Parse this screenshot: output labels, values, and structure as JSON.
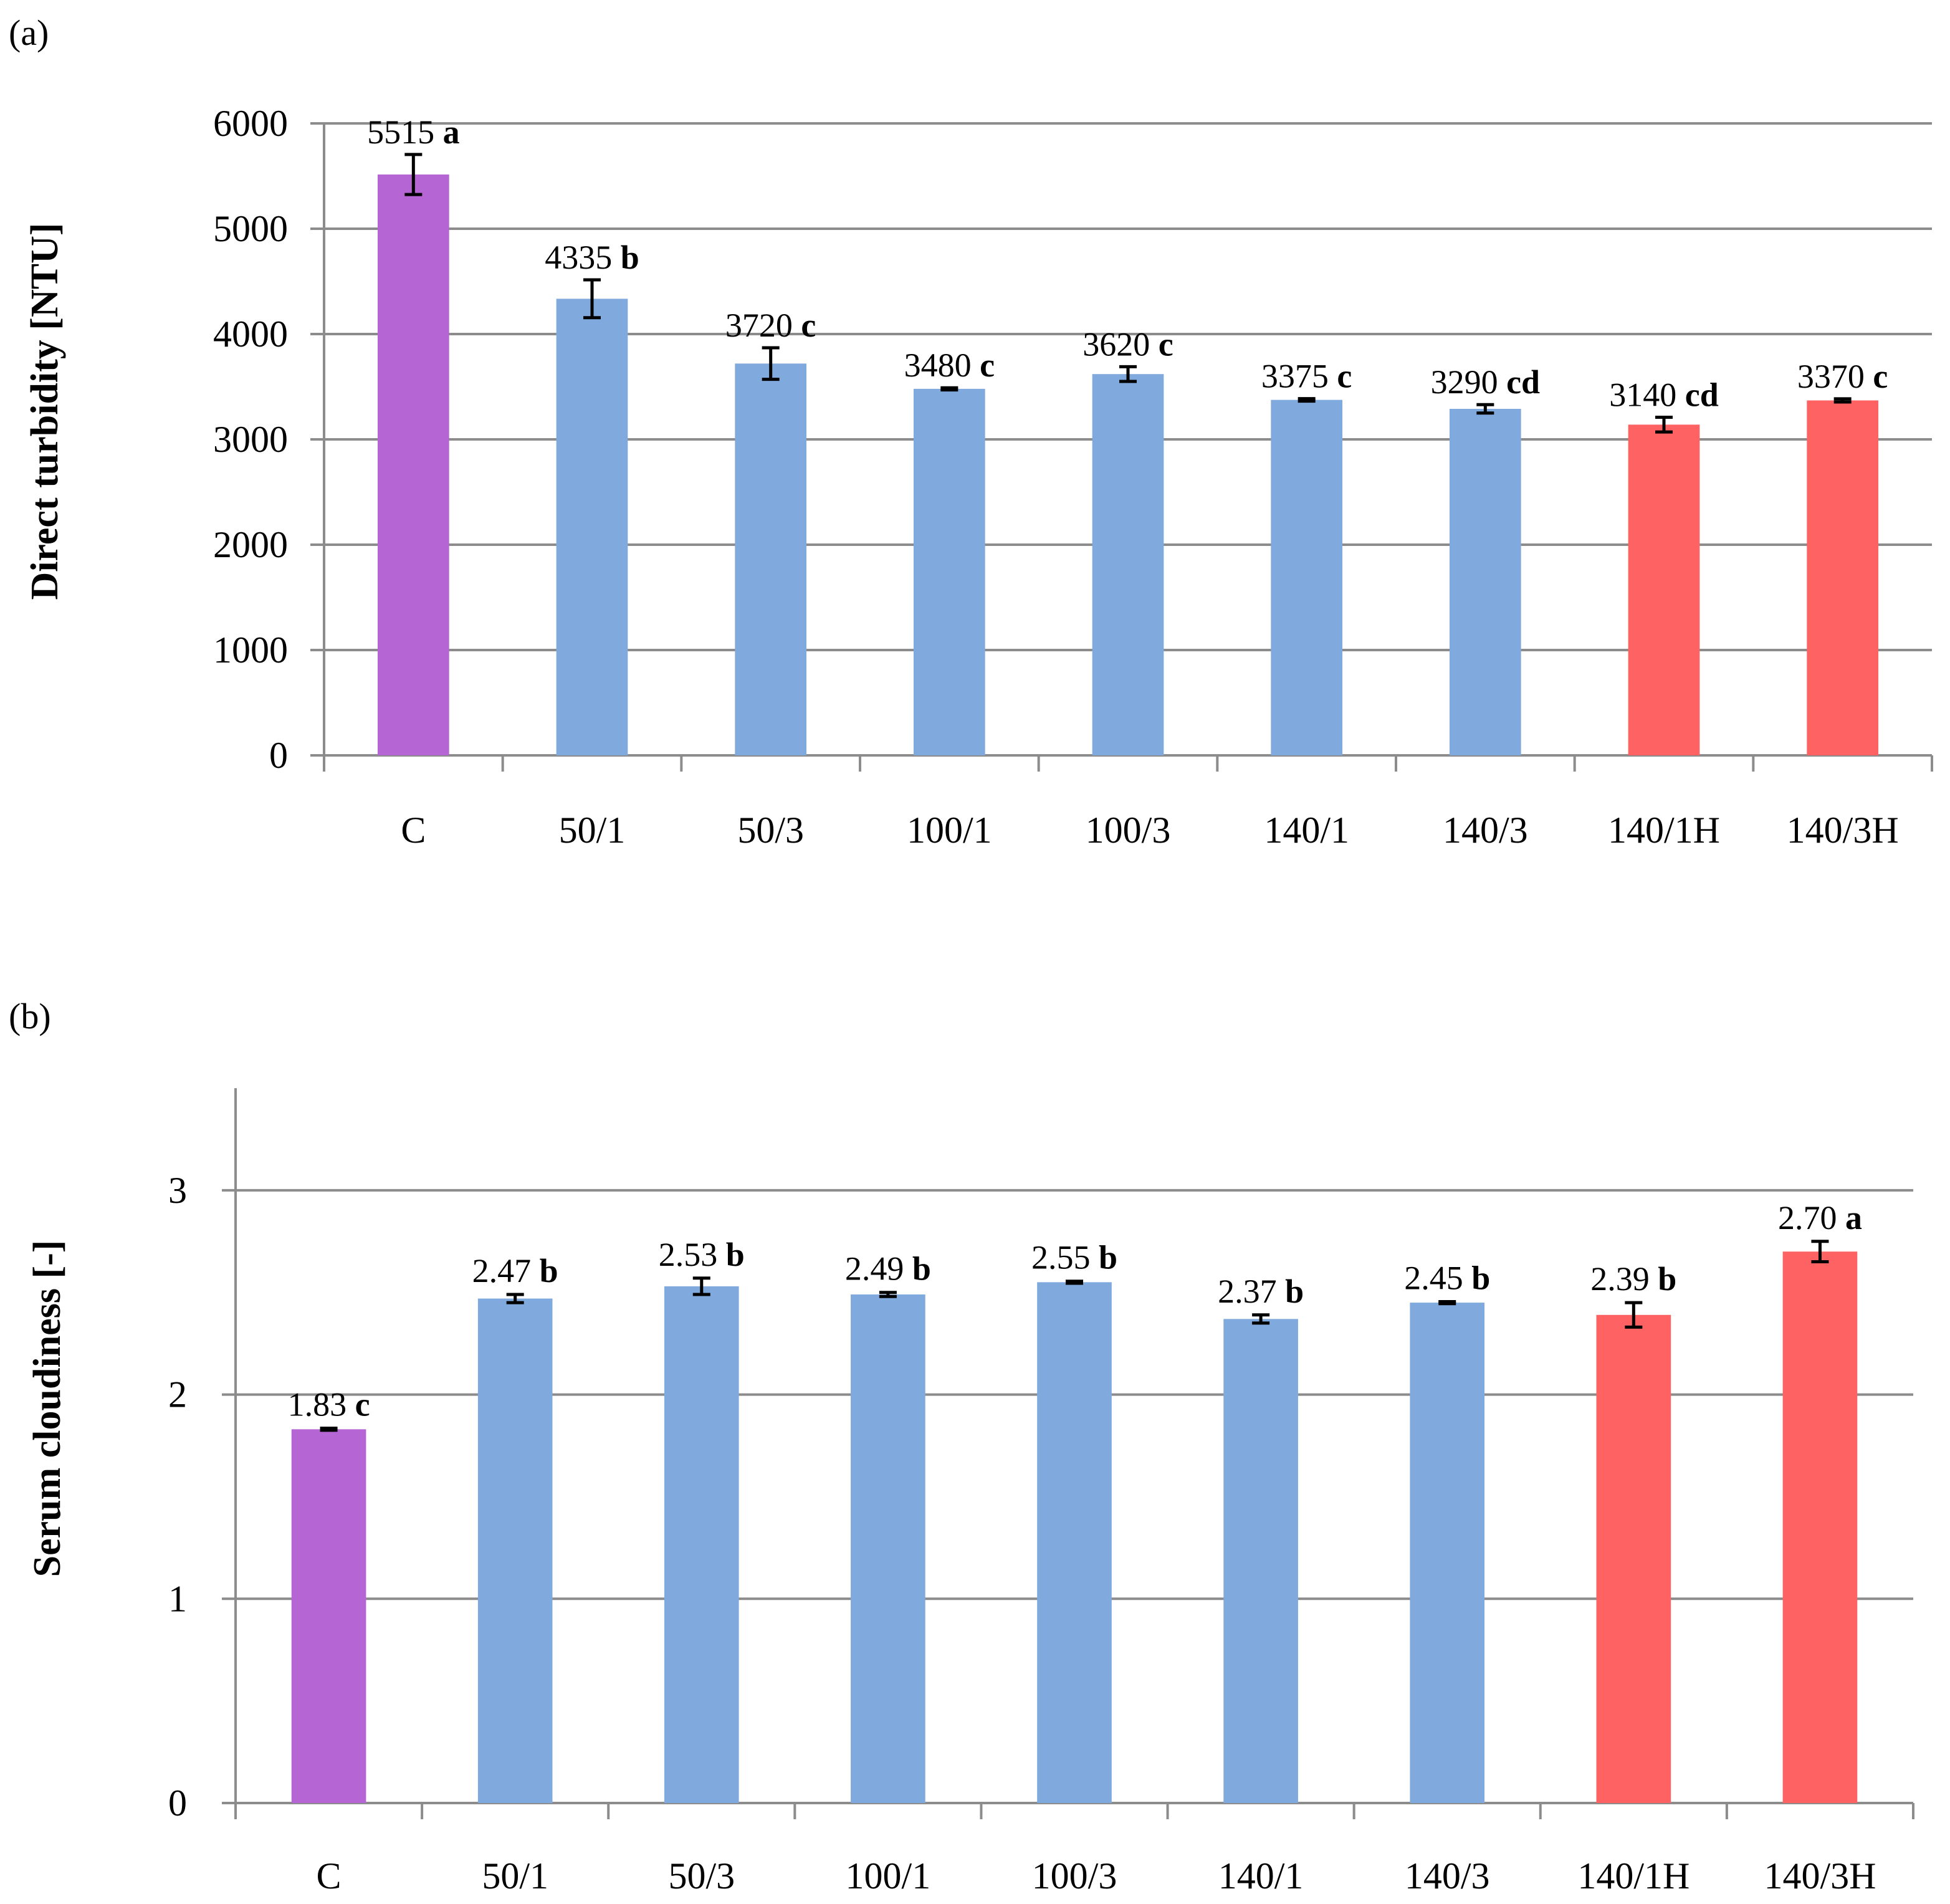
{
  "chart_data": [
    {
      "type": "bar",
      "panel_label": "(a)",
      "title": "",
      "xlabel": "",
      "ylabel": "Direct turbidity [NTU]",
      "ylim": [
        0,
        6000
      ],
      "yticks": [
        0,
        1000,
        2000,
        3000,
        4000,
        5000,
        6000
      ],
      "grid": true,
      "categories": [
        "C",
        "50/1",
        "50/3",
        "100/1",
        "100/3",
        "140/1",
        "140/3",
        "140/1H",
        "140/3H"
      ],
      "values": [
        5515,
        4335,
        3720,
        3480,
        3620,
        3375,
        3290,
        3140,
        3370
      ],
      "errors": [
        190,
        180,
        150,
        10,
        70,
        12,
        40,
        70,
        15
      ],
      "value_labels": [
        "5515",
        "4335",
        "3720",
        "3480",
        "3620",
        "3375",
        "3290",
        "3140",
        "3370"
      ],
      "letters": [
        "a",
        "b",
        "c",
        "c",
        "c",
        "c",
        "cd",
        "cd",
        "c"
      ],
      "colors": [
        "#b565d4",
        "#80aadd",
        "#80aadd",
        "#80aadd",
        "#80aadd",
        "#80aadd",
        "#80aadd",
        "#ff6262",
        "#ff6262"
      ]
    },
    {
      "type": "bar",
      "panel_label": "(b)",
      "title": "",
      "xlabel": "",
      "ylabel": "Serum cloudiness [-]",
      "ylim": [
        0,
        3.5
      ],
      "yticks": [
        0,
        1,
        2,
        3
      ],
      "grid": true,
      "categories": [
        "C",
        "50/1",
        "50/3",
        "100/1",
        "100/3",
        "140/1",
        "140/3",
        "140/1H",
        "140/3H"
      ],
      "values": [
        1.83,
        2.47,
        2.53,
        2.49,
        2.55,
        2.37,
        2.45,
        2.39,
        2.7
      ],
      "errors": [
        0.005,
        0.02,
        0.04,
        0.01,
        0.005,
        0.02,
        0.005,
        0.06,
        0.05
      ],
      "value_labels": [
        "1.83",
        "2.47",
        "2.53",
        "2.49",
        "2.55",
        "2.37",
        "2.45",
        "2.39",
        "2.70"
      ],
      "letters": [
        "c",
        "b",
        "b",
        "b",
        "b",
        "b",
        "b",
        "b",
        "a"
      ],
      "colors": [
        "#b565d4",
        "#80aadd",
        "#80aadd",
        "#80aadd",
        "#80aadd",
        "#80aadd",
        "#80aadd",
        "#ff6262",
        "#ff6262"
      ]
    }
  ]
}
